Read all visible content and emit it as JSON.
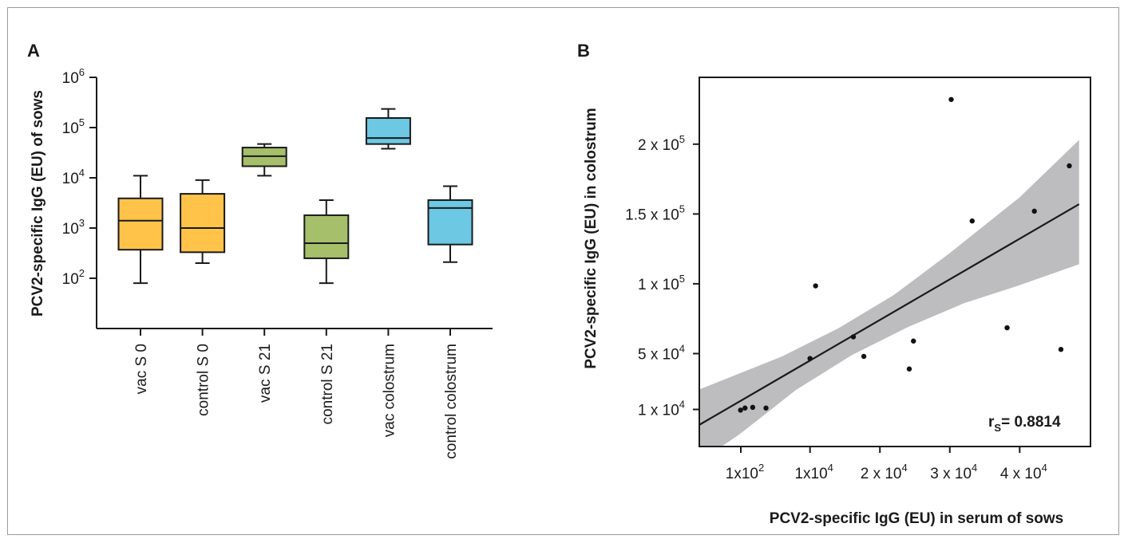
{
  "chart_data": [
    {
      "panel": "A",
      "type": "box",
      "ylabel": "PCV2-specific IgG (EU) of sows",
      "yscale": "log",
      "ylim": [
        10,
        1000000
      ],
      "yticks": [
        {
          "value": 100,
          "base": "10",
          "exp": "2"
        },
        {
          "value": 1000,
          "base": "10",
          "exp": "3"
        },
        {
          "value": 10000,
          "base": "10",
          "exp": "4"
        },
        {
          "value": 100000,
          "base": "10",
          "exp": "5"
        },
        {
          "value": 1000000,
          "base": "10",
          "exp": "6"
        }
      ],
      "boxes": [
        {
          "label": "vac S 0",
          "color": "#FFC34A",
          "min": 80,
          "q1": 370,
          "median": 1400,
          "q3": 3900,
          "max": 11000
        },
        {
          "label": "control S 0",
          "color": "#FFC34A",
          "min": 200,
          "q1": 330,
          "median": 1000,
          "q3": 4800,
          "max": 9000
        },
        {
          "label": "vac S 21",
          "color": "#A5BF6B",
          "min": 11000,
          "q1": 17000,
          "median": 27000,
          "q3": 40000,
          "max": 47000
        },
        {
          "label": "control S 21",
          "color": "#A5BF6B",
          "min": 80,
          "q1": 250,
          "median": 500,
          "q3": 1800,
          "max": 3600
        },
        {
          "label": "vac colostrum",
          "color": "#6DC8E4",
          "min": 38000,
          "q1": 47000,
          "median": 62000,
          "q3": 155000,
          "max": 235000
        },
        {
          "label": "control colostrum",
          "color": "#6DC8E4",
          "min": 210,
          "q1": 470,
          "median": 2500,
          "q3": 3600,
          "max": 6800
        }
      ]
    },
    {
      "panel": "B",
      "type": "scatter",
      "xlabel": "PCV2-specific IgG (EU) in serum of sows",
      "ylabel": "PCV2-specific IgG (EU) in colostrum",
      "xticks": [
        {
          "value": 100,
          "text": "1x10",
          "exp": "2"
        },
        {
          "value": 10000,
          "text": "1x10",
          "exp": "4"
        },
        {
          "value": 20000,
          "text": "2 x 10",
          "exp": "4"
        },
        {
          "value": 30000,
          "text": "3 x 10",
          "exp": "4"
        },
        {
          "value": 40000,
          "text": "4 x 10",
          "exp": "4"
        }
      ],
      "yticks": [
        {
          "value": 10000,
          "text": "1 x 10",
          "exp": "4"
        },
        {
          "value": 50000,
          "text": "5 x 10",
          "exp": "4"
        },
        {
          "value": 100000,
          "text": "1 x 10",
          "exp": "5"
        },
        {
          "value": 150000,
          "text": "1.5 x 10",
          "exp": "5"
        },
        {
          "value": 200000,
          "text": "2 x 10",
          "exp": "5"
        }
      ],
      "points": [
        {
          "x": 60,
          "y": 9500
        },
        {
          "x": 700,
          "y": 11000
        },
        {
          "x": 1800,
          "y": 11500
        },
        {
          "x": 3700,
          "y": 11000
        },
        {
          "x": 10000,
          "y": 46500
        },
        {
          "x": 10800,
          "y": 98500
        },
        {
          "x": 16200,
          "y": 62000
        },
        {
          "x": 17700,
          "y": 48000
        },
        {
          "x": 24200,
          "y": 39000
        },
        {
          "x": 24800,
          "y": 59000
        },
        {
          "x": 30200,
          "y": 232000
        },
        {
          "x": 33200,
          "y": 145000
        },
        {
          "x": 38200,
          "y": 68500
        },
        {
          "x": 42100,
          "y": 152000
        },
        {
          "x": 45900,
          "y": 53000
        },
        {
          "x": 47100,
          "y": 184500
        }
      ],
      "regression": {
        "x": [
          -6000,
          48500
        ],
        "y": [
          -1500,
          157000
        ]
      },
      "confidence_band": {
        "upper": [
          [
            -6000,
            24000
          ],
          [
            6000,
            48000
          ],
          [
            14000,
            68000
          ],
          [
            22000,
            92000
          ],
          [
            30000,
            122000
          ],
          [
            40000,
            162000
          ],
          [
            48500,
            203000
          ]
        ],
        "lower": [
          [
            -6000,
            -28000
          ],
          [
            0,
            -7500
          ],
          [
            8000,
            24000
          ],
          [
            16000,
            49000
          ],
          [
            24000,
            69000
          ],
          [
            32000,
            86000
          ],
          [
            40000,
            99000
          ],
          [
            48500,
            114000
          ]
        ]
      },
      "stat_label": {
        "main": "r",
        "sub": "S",
        "value": "= 0.8814"
      }
    }
  ]
}
